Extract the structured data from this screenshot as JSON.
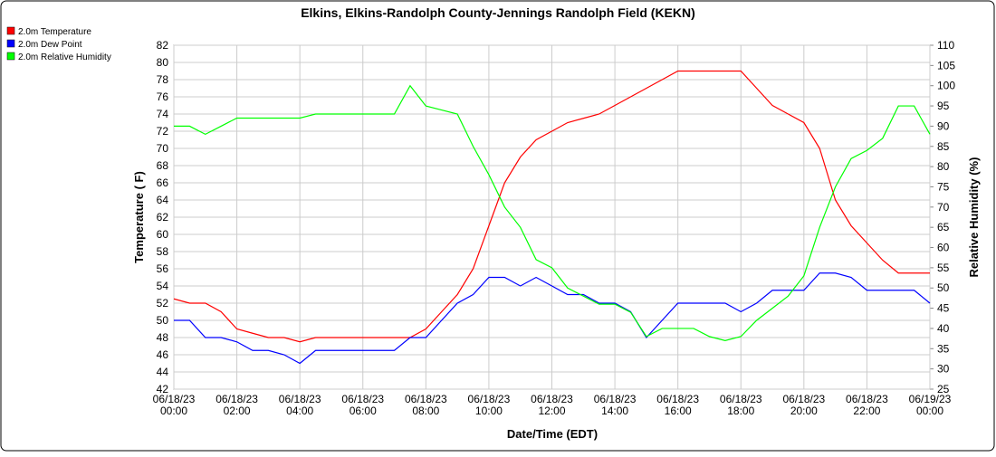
{
  "chart_data": {
    "type": "line",
    "title": "Elkins, Elkins-Randolph County-Jennings Randolph Field (KEKN)",
    "x_label": "Date/Time (EDT)",
    "y_label": "Temperature ( F)",
    "y2_label": "Relative Humidity (%)",
    "xlim": [
      0,
      24
    ],
    "xticks": [
      {
        "value": 0,
        "label": "06/18/23 00:00"
      },
      {
        "value": 2,
        "label": "06/18/23 02:00"
      },
      {
        "value": 4,
        "label": "06/18/23 04:00"
      },
      {
        "value": 6,
        "label": "06/18/23 06:00"
      },
      {
        "value": 8,
        "label": "06/18/23 08:00"
      },
      {
        "value": 10,
        "label": "06/18/23 10:00"
      },
      {
        "value": 12,
        "label": "06/18/23 12:00"
      },
      {
        "value": 14,
        "label": "06/18/23 14:00"
      },
      {
        "value": 16,
        "label": "06/18/23 16:00"
      },
      {
        "value": 18,
        "label": "06/18/23 18:00"
      },
      {
        "value": 20,
        "label": "06/18/23 20:00"
      },
      {
        "value": 22,
        "label": "06/18/23 22:00"
      },
      {
        "value": 24,
        "label": "06/19/23 00:00"
      }
    ],
    "ylim": [
      42,
      82
    ],
    "yticks": [
      42,
      44,
      46,
      48,
      50,
      52,
      54,
      56,
      58,
      60,
      62,
      64,
      66,
      68,
      70,
      72,
      74,
      76,
      78,
      80,
      82
    ],
    "y2lim": [
      25,
      110
    ],
    "y2ticks": [
      25,
      30,
      35,
      40,
      45,
      50,
      55,
      60,
      65,
      70,
      75,
      80,
      85,
      90,
      95,
      100,
      105,
      110
    ],
    "grid": true,
    "legend": "top-left",
    "x": [
      0,
      0.5,
      1,
      1.5,
      2,
      2.5,
      3,
      3.5,
      4,
      4.5,
      5,
      5.5,
      6,
      6.5,
      7,
      7.5,
      8,
      8.5,
      9,
      9.5,
      10,
      10.5,
      11,
      11.5,
      12,
      12.5,
      13,
      13.5,
      14,
      14.5,
      15,
      15.5,
      16,
      16.5,
      17,
      17.5,
      18,
      18.5,
      19,
      19.5,
      20,
      20.5,
      21,
      21.5,
      22,
      22.5,
      23,
      23.5,
      24
    ],
    "series": [
      {
        "name": "2.0m Temperature",
        "color": "#ff0000",
        "values": [
          52.5,
          52,
          52,
          51,
          49,
          48.5,
          48,
          48,
          47.5,
          48,
          48,
          48,
          48,
          48,
          48,
          48,
          49,
          51,
          53,
          56,
          61,
          66,
          69,
          71,
          72,
          73,
          73.5,
          74,
          75,
          76,
          77,
          78,
          79,
          79,
          79,
          79,
          79,
          77,
          75,
          74,
          73,
          70,
          64,
          61,
          59,
          57,
          55.5,
          55.5,
          55.5
        ]
      },
      {
        "name": "2.0m Dew Point",
        "color": "#0000ff",
        "values": [
          50,
          50,
          48,
          48,
          47.5,
          46.5,
          46.5,
          46,
          45,
          46.5,
          46.5,
          46.5,
          46.5,
          46.5,
          46.5,
          48,
          48,
          50,
          52,
          53,
          55,
          55,
          54,
          55,
          54,
          53,
          53,
          52,
          52,
          51,
          48,
          50,
          52,
          52,
          52,
          52,
          51,
          52,
          53.5,
          53.5,
          53.5,
          55.5,
          55.5,
          55,
          53.5,
          53.5,
          53.5,
          53.5,
          52
        ]
      },
      {
        "name": "2.0m Relative Humidity",
        "color": "#00ff00",
        "axis": "y2",
        "values": [
          90,
          90,
          88,
          90,
          92,
          92,
          92,
          92,
          92,
          93,
          93,
          93,
          93,
          93,
          93,
          100,
          95,
          94,
          93,
          85,
          78,
          70,
          65,
          57,
          55,
          50,
          48,
          46,
          46,
          44,
          38,
          40,
          40,
          40,
          38,
          37,
          38,
          42,
          45,
          48,
          53,
          65,
          75,
          82,
          84,
          87,
          95,
          95,
          88
        ]
      }
    ]
  }
}
